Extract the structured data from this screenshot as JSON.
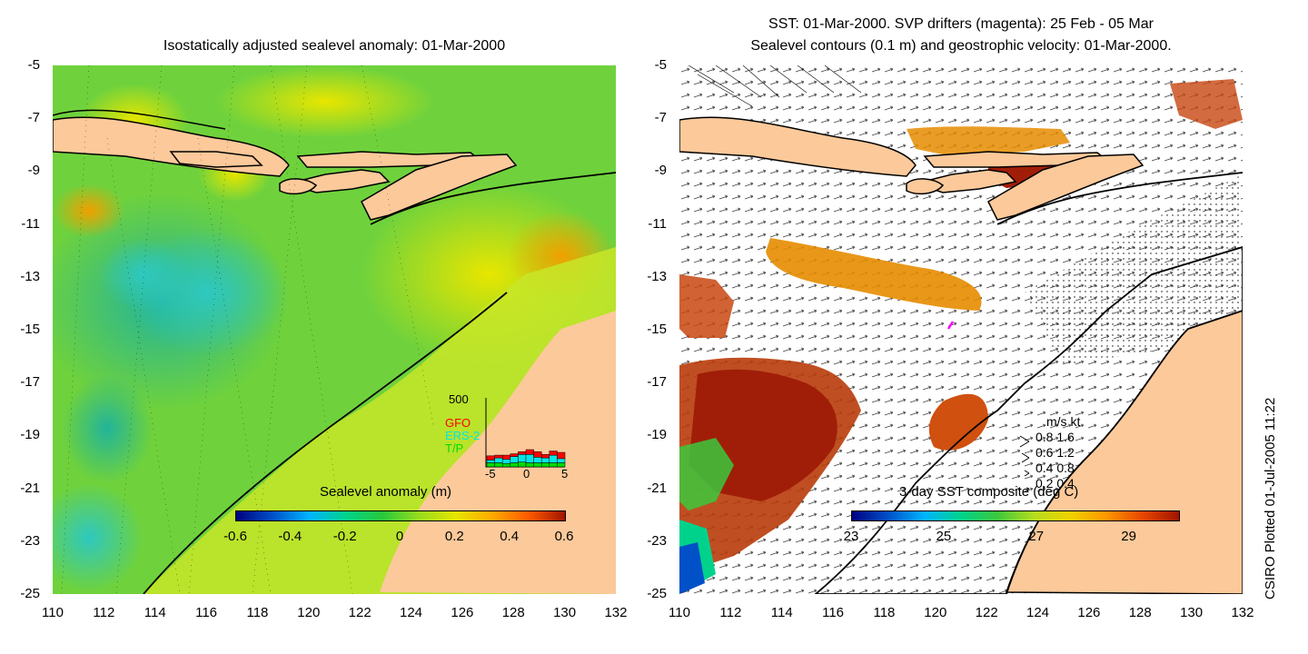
{
  "left_panel": {
    "title": "Isostatically adjusted sealevel anomaly: 01-Mar-2000",
    "colorbar_label": "Sealevel anomaly (m)",
    "colorbar_ticks": [
      "-0.6",
      "-0.4",
      "-0.2",
      "0",
      "0.2",
      "0.4",
      "0.6"
    ],
    "colorbar_colors": [
      "#00007f",
      "#0050c8",
      "#00b4ff",
      "#00d28c",
      "#28c83c",
      "#96dc1e",
      "#e6e600",
      "#ffaa00",
      "#ff5a00",
      "#a01400"
    ],
    "histogram": {
      "ymax_label": "500",
      "x_ticks": [
        "-5",
        "0",
        "5"
      ],
      "legend": [
        {
          "name": "GFO",
          "color": "#ff0000"
        },
        {
          "name": "ERS-2",
          "color": "#00e6e6"
        },
        {
          "name": "T/P",
          "color": "#00dc00"
        }
      ],
      "bins": [
        {
          "tp": 60,
          "ers": 40,
          "gfo": 60
        },
        {
          "tp": 60,
          "ers": 70,
          "gfo": 40
        },
        {
          "tp": 50,
          "ers": 60,
          "gfo": 60
        },
        {
          "tp": 60,
          "ers": 90,
          "gfo": 40
        },
        {
          "tp": 70,
          "ers": 110,
          "gfo": 40
        },
        {
          "tp": 60,
          "ers": 120,
          "gfo": 70
        },
        {
          "tp": 60,
          "ers": 80,
          "gfo": 80
        },
        {
          "tp": 60,
          "ers": 70,
          "gfo": 50
        },
        {
          "tp": 60,
          "ers": 110,
          "gfo": 60
        },
        {
          "tp": 60,
          "ers": 60,
          "gfo": 90
        }
      ]
    }
  },
  "right_panel": {
    "title_line1": "SST: 01-Mar-2000. SVP drifters (magenta): 25 Feb - 05 Mar",
    "title_line2": "Sealevel contours (0.1 m) and geostrophic velocity: 01-Mar-2000.",
    "colorbar_label": "3-day SST composite (deg C)",
    "colorbar_ticks": [
      "23",
      "25",
      "27",
      "29"
    ],
    "colorbar_colors": [
      "#00007f",
      "#0050c8",
      "#00b4ff",
      "#00d28c",
      "#3cc83c",
      "#b4dc1e",
      "#f0d200",
      "#ff9600",
      "#e64600",
      "#a01400"
    ],
    "velocity_key": {
      "header": "m/s  kt",
      "rows": [
        "0.8  1.6",
        "0.6  1.2",
        "0.4  0.8",
        "0.2  0.4"
      ]
    }
  },
  "axes": {
    "y_ticks": [
      "-5",
      "-7",
      "-9",
      "-11",
      "-13",
      "-15",
      "-17",
      "-19",
      "-21",
      "-23",
      "-25"
    ],
    "x_ticks": [
      "110",
      "112",
      "114",
      "116",
      "118",
      "120",
      "122",
      "124",
      "126",
      "128",
      "130",
      "132"
    ]
  },
  "credit": "CSIRO Plotted 01-Jul-2005 11:22",
  "colors": {
    "land": "#fcc99a",
    "ocean_green": "#5cd236"
  }
}
